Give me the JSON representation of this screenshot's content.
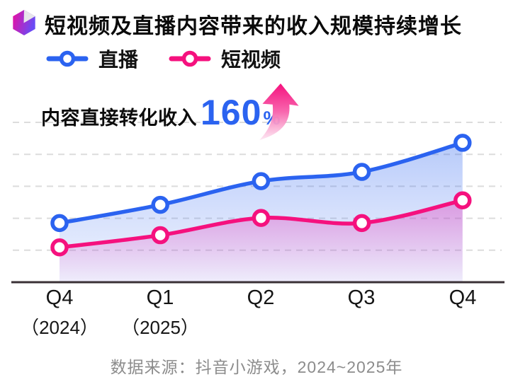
{
  "page": {
    "background": "#ffffff"
  },
  "chart_data": {
    "type": "line",
    "title": "短视频及直播内容带来的收入规模持续增长",
    "categories": [
      {
        "label": "Q4",
        "sub": "（2024）"
      },
      {
        "label": "Q1",
        "sub": "（2025）"
      },
      {
        "label": "Q2",
        "sub": ""
      },
      {
        "label": "Q3",
        "sub": ""
      },
      {
        "label": "Q4",
        "sub": ""
      }
    ],
    "series": [
      {
        "name": "直播",
        "color": "#2B63F0",
        "values": [
          1.85,
          2.42,
          3.16,
          3.45,
          4.36
        ]
      },
      {
        "name": "短视频",
        "color": "#F5117E",
        "values": [
          1.09,
          1.47,
          2.01,
          1.85,
          2.56
        ]
      }
    ],
    "ylim": [
      0,
      5
    ],
    "y_axis_labels_shown": false,
    "value_unit": "relative (1 = one dashed gridline step; chart shows no numeric y-axis)",
    "grid": "horizontal-dashed",
    "legend_position": "top-left",
    "marker_style": "white-filled ring circles",
    "area_fill": "gradient fade to baseline",
    "annotation": {
      "label": "内容直接转化收入",
      "value": "160",
      "unit": "%",
      "value_color": "#2B63F0"
    },
    "source": "数据来源：抖音小游戏，2024~2025年",
    "colors": {
      "grid": "#dcdcdc",
      "axis": "#3a3136",
      "title": "#0a0a0a",
      "source_text": "#8c8c8c"
    }
  }
}
